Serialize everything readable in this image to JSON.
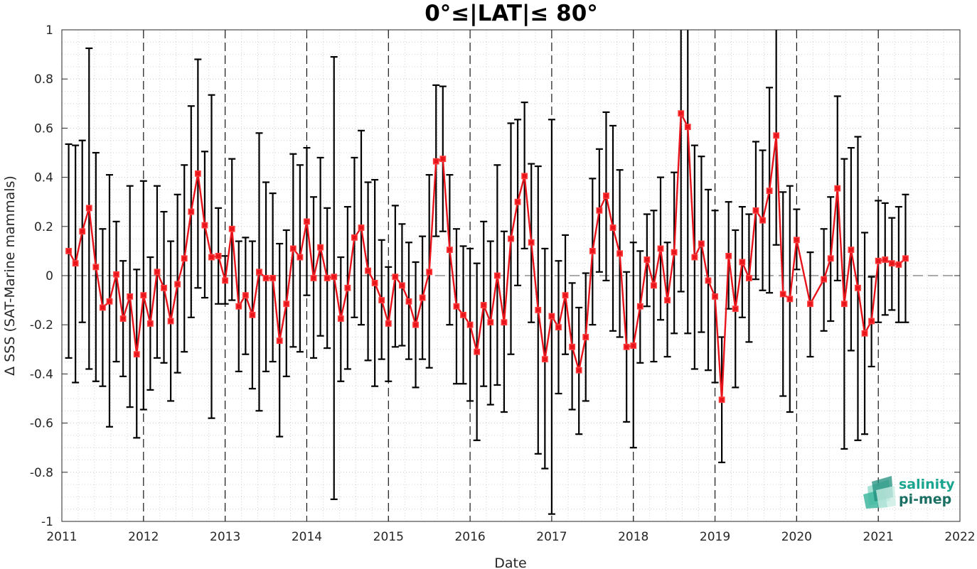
{
  "chart_data": {
    "type": "line",
    "title": "0°≤|LAT|≤ 80°",
    "xlabel": "Date",
    "ylabel": "Δ SSS (SAT-Marine mammals)",
    "xlim": [
      "2011-01-01",
      "2022-01-01"
    ],
    "ylim": [
      -1,
      1
    ],
    "x_ticks": [
      "2011",
      "2012",
      "2013",
      "2014",
      "2015",
      "2016",
      "2017",
      "2018",
      "2019",
      "2020",
      "2021",
      "2022"
    ],
    "y_ticks": [
      "-1",
      "-0.8",
      "-0.6",
      "-0.4",
      "-0.2",
      "0",
      "0.2",
      "0.4",
      "0.6",
      "0.8",
      "1"
    ],
    "grid": "minor dotted",
    "year_separators": "dashed vertical lines at each year",
    "zero_line": "dashed horizontal line at 0",
    "series": [
      {
        "color": "#e8141b",
        "marker": "square",
        "errorbar_color": "#000000",
        "points": [
          {
            "date": "2011-02",
            "y": 0.1,
            "lo": -0.335,
            "hi": 0.535
          },
          {
            "date": "2011-03",
            "y": 0.05,
            "lo": -0.435,
            "hi": 0.53
          },
          {
            "date": "2011-04",
            "y": 0.18,
            "lo": -0.19,
            "hi": 0.55
          },
          {
            "date": "2011-05",
            "y": 0.275,
            "lo": -0.38,
            "hi": 0.925
          },
          {
            "date": "2011-06",
            "y": 0.035,
            "lo": -0.43,
            "hi": 0.5
          },
          {
            "date": "2011-07",
            "y": -0.13,
            "lo": -0.45,
            "hi": 0.19
          },
          {
            "date": "2011-08",
            "y": -0.105,
            "lo": -0.615,
            "hi": 0.41
          },
          {
            "date": "2011-09",
            "y": 0.005,
            "lo": -0.35,
            "hi": 0.22
          },
          {
            "date": "2011-10",
            "y": -0.175,
            "lo": -0.41,
            "hi": 0.06
          },
          {
            "date": "2011-11",
            "y": -0.085,
            "lo": -0.535,
            "hi": 0.365
          },
          {
            "date": "2011-12",
            "y": -0.32,
            "lo": -0.66,
            "hi": 0.025
          },
          {
            "date": "2012-01",
            "y": -0.08,
            "lo": -0.545,
            "hi": 0.385
          },
          {
            "date": "2012-02",
            "y": -0.195,
            "lo": -0.465,
            "hi": 0.075
          },
          {
            "date": "2012-03",
            "y": 0.015,
            "lo": -0.335,
            "hi": 0.365
          },
          {
            "date": "2012-04",
            "y": -0.05,
            "lo": -0.355,
            "hi": 0.26
          },
          {
            "date": "2012-05",
            "y": -0.185,
            "lo": -0.51,
            "hi": 0.14
          },
          {
            "date": "2012-06",
            "y": -0.035,
            "lo": -0.395,
            "hi": 0.33
          },
          {
            "date": "2012-07",
            "y": 0.07,
            "lo": -0.31,
            "hi": 0.45
          },
          {
            "date": "2012-08",
            "y": 0.26,
            "lo": -0.17,
            "hi": 0.69
          },
          {
            "date": "2012-09",
            "y": 0.415,
            "lo": -0.05,
            "hi": 0.88
          },
          {
            "date": "2012-10",
            "y": 0.205,
            "lo": -0.09,
            "hi": 0.505
          },
          {
            "date": "2012-11",
            "y": 0.075,
            "lo": -0.58,
            "hi": 0.735
          },
          {
            "date": "2012-12",
            "y": 0.08,
            "lo": -0.115,
            "hi": 0.275
          },
          {
            "date": "2013-01",
            "y": -0.02,
            "lo": -0.115,
            "hi": 0.08
          },
          {
            "date": "2013-02",
            "y": 0.19,
            "lo": -0.1,
            "hi": 0.475
          },
          {
            "date": "2013-03",
            "y": -0.125,
            "lo": -0.39,
            "hi": 0.14
          },
          {
            "date": "2013-04",
            "y": -0.08,
            "lo": -0.32,
            "hi": 0.155
          },
          {
            "date": "2013-05",
            "y": -0.16,
            "lo": -0.46,
            "hi": 0.14
          },
          {
            "date": "2013-06",
            "y": 0.015,
            "lo": -0.55,
            "hi": 0.58
          },
          {
            "date": "2013-07",
            "y": -0.01,
            "lo": -0.39,
            "hi": 0.38
          },
          {
            "date": "2013-08",
            "y": -0.01,
            "lo": -0.35,
            "hi": 0.335
          },
          {
            "date": "2013-09",
            "y": -0.265,
            "lo": -0.655,
            "hi": 0.13
          },
          {
            "date": "2013-10",
            "y": -0.115,
            "lo": -0.41,
            "hi": 0.185
          },
          {
            "date": "2013-11",
            "y": 0.11,
            "lo": -0.29,
            "hi": 0.495
          },
          {
            "date": "2013-12",
            "y": 0.075,
            "lo": -0.31,
            "hi": 0.45
          },
          {
            "date": "2014-01",
            "y": 0.22,
            "lo": -0.08,
            "hi": 0.52
          },
          {
            "date": "2014-02",
            "y": -0.01,
            "lo": -0.335,
            "hi": 0.32
          },
          {
            "date": "2014-03",
            "y": 0.115,
            "lo": -0.245,
            "hi": 0.48
          },
          {
            "date": "2014-04",
            "y": -0.01,
            "lo": -0.295,
            "hi": 0.275
          },
          {
            "date": "2014-05",
            "y": -0.005,
            "lo": -0.91,
            "hi": 0.89
          },
          {
            "date": "2014-06",
            "y": -0.175,
            "lo": -0.43,
            "hi": 0.075
          },
          {
            "date": "2014-07",
            "y": -0.05,
            "lo": -0.38,
            "hi": 0.28
          },
          {
            "date": "2014-08",
            "y": 0.155,
            "lo": -0.17,
            "hi": 0.48
          },
          {
            "date": "2014-09",
            "y": 0.195,
            "lo": -0.2,
            "hi": 0.59
          },
          {
            "date": "2014-10",
            "y": 0.02,
            "lo": -0.345,
            "hi": 0.38
          },
          {
            "date": "2014-11",
            "y": -0.03,
            "lo": -0.45,
            "hi": 0.39
          },
          {
            "date": "2014-12",
            "y": -0.1,
            "lo": -0.34,
            "hi": 0.145
          },
          {
            "date": "2015-01",
            "y": -0.195,
            "lo": -0.43,
            "hi": 0.035
          },
          {
            "date": "2015-02",
            "y": -0.005,
            "lo": -0.29,
            "hi": 0.285
          },
          {
            "date": "2015-03",
            "y": -0.04,
            "lo": -0.285,
            "hi": 0.21
          },
          {
            "date": "2015-04",
            "y": -0.105,
            "lo": -0.34,
            "hi": 0.135
          },
          {
            "date": "2015-05",
            "y": -0.2,
            "lo": -0.455,
            "hi": 0.055
          },
          {
            "date": "2015-06",
            "y": -0.09,
            "lo": -0.34,
            "hi": 0.16
          },
          {
            "date": "2015-07",
            "y": 0.015,
            "lo": -0.375,
            "hi": 0.41
          },
          {
            "date": "2015-08",
            "y": 0.465,
            "lo": 0.16,
            "hi": 0.775
          },
          {
            "date": "2015-09",
            "y": 0.475,
            "lo": 0.18,
            "hi": 0.77
          },
          {
            "date": "2015-10",
            "y": 0.105,
            "lo": -0.2,
            "hi": 0.41
          },
          {
            "date": "2015-11",
            "y": -0.125,
            "lo": -0.44,
            "hi": 0.19
          },
          {
            "date": "2015-12",
            "y": -0.16,
            "lo": -0.44,
            "hi": 0.12
          },
          {
            "date": "2016-01",
            "y": -0.2,
            "lo": -0.51,
            "hi": 0.11
          },
          {
            "date": "2016-02",
            "y": -0.31,
            "lo": -0.67,
            "hi": 0.05
          },
          {
            "date": "2016-03",
            "y": -0.12,
            "lo": -0.45,
            "hi": 0.22
          },
          {
            "date": "2016-04",
            "y": -0.19,
            "lo": -0.525,
            "hi": 0.14
          },
          {
            "date": "2016-05",
            "y": 0.0,
            "lo": -0.445,
            "hi": 0.45
          },
          {
            "date": "2016-06",
            "y": -0.19,
            "lo": -0.555,
            "hi": 0.18
          },
          {
            "date": "2016-07",
            "y": 0.15,
            "lo": -0.32,
            "hi": 0.62
          },
          {
            "date": "2016-08",
            "y": 0.3,
            "lo": -0.04,
            "hi": 0.635
          },
          {
            "date": "2016-09",
            "y": 0.405,
            "lo": 0.11,
            "hi": 0.705
          },
          {
            "date": "2016-10",
            "y": 0.135,
            "lo": -0.19,
            "hi": 0.455
          },
          {
            "date": "2016-11",
            "y": -0.14,
            "lo": -0.725,
            "hi": 0.445
          },
          {
            "date": "2016-12",
            "y": -0.34,
            "lo": -0.785,
            "hi": 0.11
          },
          {
            "date": "2017-01",
            "y": -0.165,
            "lo": -0.97,
            "hi": 0.635
          },
          {
            "date": "2017-02",
            "y": -0.21,
            "lo": -0.48,
            "hi": 0.06
          },
          {
            "date": "2017-03",
            "y": -0.08,
            "lo": -0.32,
            "hi": 0.165
          },
          {
            "date": "2017-04",
            "y": -0.29,
            "lo": -0.545,
            "hi": -0.03
          },
          {
            "date": "2017-05",
            "y": -0.385,
            "lo": -0.645,
            "hi": -0.13
          },
          {
            "date": "2017-06",
            "y": -0.25,
            "lo": -0.51,
            "hi": 0.01
          },
          {
            "date": "2017-07",
            "y": 0.1,
            "lo": -0.2,
            "hi": 0.395
          },
          {
            "date": "2017-08",
            "y": 0.265,
            "lo": 0.015,
            "hi": 0.515
          },
          {
            "date": "2017-09",
            "y": 0.325,
            "lo": -0.02,
            "hi": 0.665
          },
          {
            "date": "2017-10",
            "y": 0.195,
            "lo": -0.225,
            "hi": 0.61
          },
          {
            "date": "2017-11",
            "y": 0.09,
            "lo": -0.25,
            "hi": 0.43
          },
          {
            "date": "2017-12",
            "y": -0.29,
            "lo": -0.595,
            "hi": 0.015
          },
          {
            "date": "2018-01",
            "y": -0.285,
            "lo": -0.7,
            "hi": 0.135
          },
          {
            "date": "2018-02",
            "y": -0.125,
            "lo": -0.355,
            "hi": 0.1
          },
          {
            "date": "2018-03",
            "y": 0.065,
            "lo": -0.125,
            "hi": 0.25
          },
          {
            "date": "2018-04",
            "y": -0.04,
            "lo": -0.35,
            "hi": 0.265
          },
          {
            "date": "2018-05",
            "y": 0.11,
            "lo": -0.18,
            "hi": 0.4
          },
          {
            "date": "2018-06",
            "y": -0.1,
            "lo": -0.33,
            "hi": 0.135
          },
          {
            "date": "2018-07",
            "y": 0.095,
            "lo": -0.235,
            "hi": 0.42
          },
          {
            "date": "2018-08",
            "y": 0.66,
            "lo": -0.065,
            "hi": 1.38
          },
          {
            "date": "2018-09",
            "y": 0.605,
            "lo": -0.235,
            "hi": 1.44
          },
          {
            "date": "2018-10",
            "y": 0.075,
            "lo": -0.38,
            "hi": 0.53
          },
          {
            "date": "2018-11",
            "y": 0.13,
            "lo": -0.23,
            "hi": 0.485
          },
          {
            "date": "2018-12",
            "y": -0.02,
            "lo": -0.385,
            "hi": 0.35
          },
          {
            "date": "2019-01",
            "y": -0.085,
            "lo": -0.435,
            "hi": 0.265
          },
          {
            "date": "2019-02",
            "y": -0.505,
            "lo": -0.76,
            "hi": -0.25
          },
          {
            "date": "2019-03",
            "y": 0.08,
            "lo": -0.135,
            "hi": 0.3
          },
          {
            "date": "2019-04",
            "y": -0.135,
            "lo": -0.455,
            "hi": 0.185
          },
          {
            "date": "2019-05",
            "y": 0.055,
            "lo": -0.17,
            "hi": 0.28
          },
          {
            "date": "2019-06",
            "y": -0.01,
            "lo": -0.27,
            "hi": 0.25
          },
          {
            "date": "2019-07",
            "y": 0.265,
            "lo": -0.015,
            "hi": 0.545
          },
          {
            "date": "2019-08",
            "y": 0.225,
            "lo": -0.06,
            "hi": 0.51
          },
          {
            "date": "2019-09",
            "y": 0.345,
            "lo": -0.07,
            "hi": 0.765
          },
          {
            "date": "2019-10",
            "y": 0.57,
            "lo": 0.125,
            "hi": 1.01
          },
          {
            "date": "2019-11",
            "y": -0.075,
            "lo": -0.49,
            "hi": 0.34
          },
          {
            "date": "2019-12",
            "y": -0.095,
            "lo": -0.555,
            "hi": 0.365
          },
          {
            "date": "2020-01",
            "y": 0.145,
            "lo": 0.025,
            "hi": 0.27
          },
          {
            "date": "2020-03",
            "y": -0.115,
            "lo": -0.33,
            "hi": 0.095
          },
          {
            "date": "2020-05",
            "y": -0.015,
            "lo": -0.225,
            "hi": 0.19
          },
          {
            "date": "2020-06",
            "y": 0.07,
            "lo": -0.185,
            "hi": 0.32
          },
          {
            "date": "2020-07",
            "y": 0.355,
            "lo": -0.02,
            "hi": 0.73
          },
          {
            "date": "2020-08",
            "y": -0.115,
            "lo": -0.705,
            "hi": 0.475
          },
          {
            "date": "2020-09",
            "y": 0.105,
            "lo": -0.305,
            "hi": 0.52
          },
          {
            "date": "2020-10",
            "y": -0.05,
            "lo": -0.67,
            "hi": 0.565
          },
          {
            "date": "2020-11",
            "y": -0.235,
            "lo": -0.645,
            "hi": 0.175
          },
          {
            "date": "2020-12",
            "y": -0.185,
            "lo": -0.37,
            "hi": -0.005
          },
          {
            "date": "2021-01",
            "y": 0.06,
            "lo": -0.19,
            "hi": 0.305
          },
          {
            "date": "2021-02",
            "y": 0.065,
            "lo": -0.16,
            "hi": 0.295
          },
          {
            "date": "2021-03",
            "y": 0.05,
            "lo": -0.14,
            "hi": 0.235
          },
          {
            "date": "2021-04",
            "y": 0.045,
            "lo": -0.19,
            "hi": 0.28
          },
          {
            "date": "2021-05",
            "y": 0.07,
            "lo": -0.19,
            "hi": 0.33
          }
        ]
      }
    ]
  },
  "logo": {
    "line1": "salinity",
    "line2": "pi-mep",
    "color1": "#1aa58f",
    "color2": "#1b6f63"
  }
}
